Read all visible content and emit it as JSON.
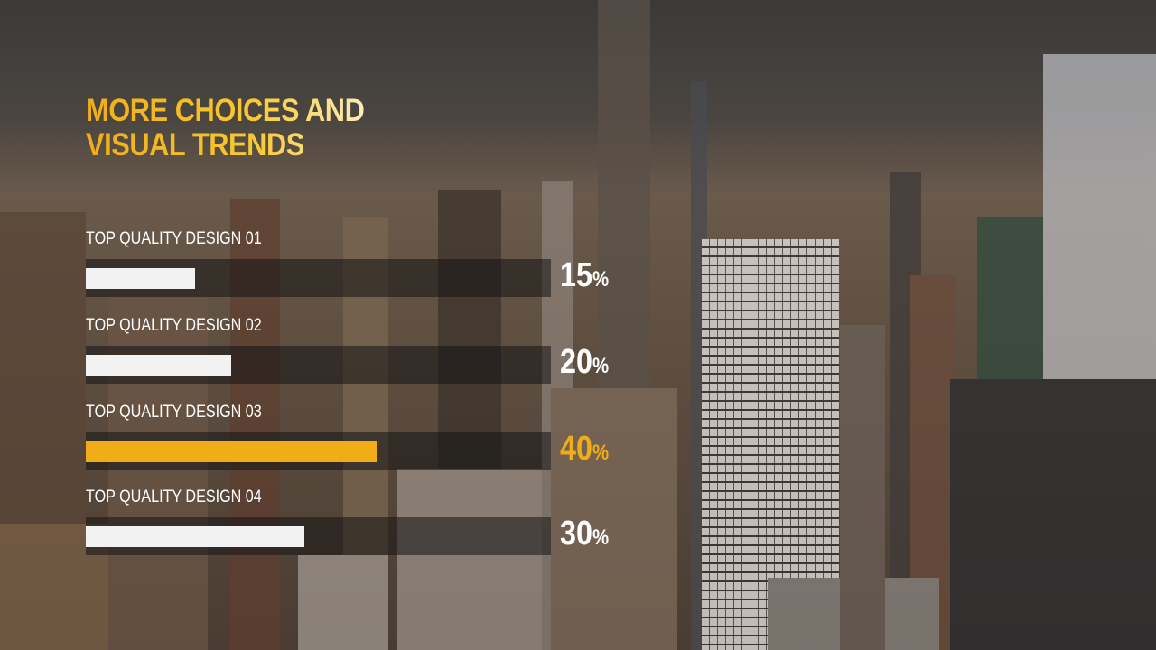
{
  "title": "MORE CHOICES AND VISUAL TRENDS",
  "colors": {
    "accent": "#f0ad17",
    "bar": "#f2f2f2",
    "track": "rgba(20,20,20,0.55)"
  },
  "chart_data": {
    "type": "bar",
    "orientation": "horizontal",
    "categories": [
      "TOP QUALITY DESIGN 01",
      "TOP QUALITY DESIGN 02",
      "TOP QUALITY DESIGN 03",
      "TOP QUALITY DESIGN 04"
    ],
    "values": [
      15,
      20,
      40,
      30
    ],
    "unit": "%",
    "highlight_index": 2,
    "labels": [
      {
        "num": "15",
        "unit": "%"
      },
      {
        "num": "20",
        "unit": "%"
      },
      {
        "num": "40",
        "unit": "%"
      },
      {
        "num": "30",
        "unit": "%"
      }
    ]
  }
}
